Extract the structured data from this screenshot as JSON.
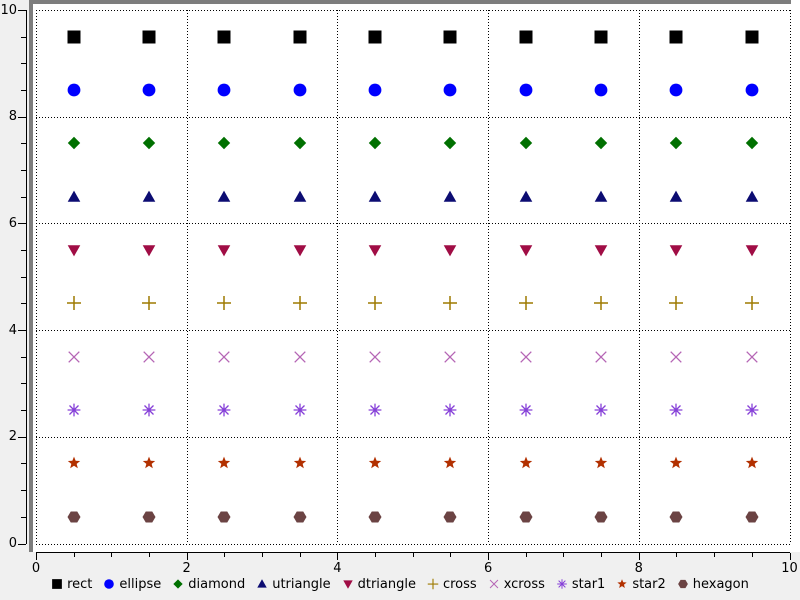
{
  "plot": {
    "page_background": "#f0f0f0",
    "plot_background": "#ffffff",
    "frame_color": "#7d7d7d",
    "axis_color": "#000000",
    "grid_style": "dotted",
    "grid_color": "#000000",
    "text_color": "#000000"
  },
  "chart_data": {
    "type": "scatter",
    "title": "",
    "xlabel": "",
    "ylabel": "",
    "xlim": [
      0,
      10
    ],
    "ylim": [
      0,
      10
    ],
    "major_tick_step": 2,
    "minor_tick_step": 0.5,
    "x_tick_labels": [
      "0",
      "2",
      "4",
      "6",
      "8",
      "10"
    ],
    "y_tick_labels": [
      "0",
      "2",
      "4",
      "6",
      "8",
      "10"
    ],
    "grid": "dotted gridlines at every major tick (step 2) on both axes",
    "legend_position": "bottom-center",
    "x": [
      0.5,
      1.5,
      2.5,
      3.5,
      4.5,
      5.5,
      6.5,
      7.5,
      8.5,
      9.5
    ],
    "series": [
      {
        "name": "rect",
        "shape": "rect",
        "color": "#000000",
        "y": 9.5
      },
      {
        "name": "ellipse",
        "shape": "ellipse",
        "color": "#0000ff",
        "y": 8.5
      },
      {
        "name": "diamond",
        "shape": "diamond",
        "color": "#007000",
        "y": 7.5
      },
      {
        "name": "utriangle",
        "shape": "utriangle",
        "color": "#0c0c72",
        "y": 6.5
      },
      {
        "name": "dtriangle",
        "shape": "dtriangle",
        "color": "#a00d45",
        "y": 5.5
      },
      {
        "name": "cross",
        "shape": "cross",
        "color": "#9e7a00",
        "y": 4.5
      },
      {
        "name": "xcross",
        "shape": "xcross",
        "color": "#b565b5",
        "y": 3.5
      },
      {
        "name": "star1",
        "shape": "star1",
        "color": "#8640d8",
        "y": 2.5
      },
      {
        "name": "star2",
        "shape": "star2",
        "color": "#b23000",
        "y": 1.5
      },
      {
        "name": "hexagon",
        "shape": "hexagon",
        "color": "#6b4343",
        "y": 0.5
      }
    ]
  }
}
